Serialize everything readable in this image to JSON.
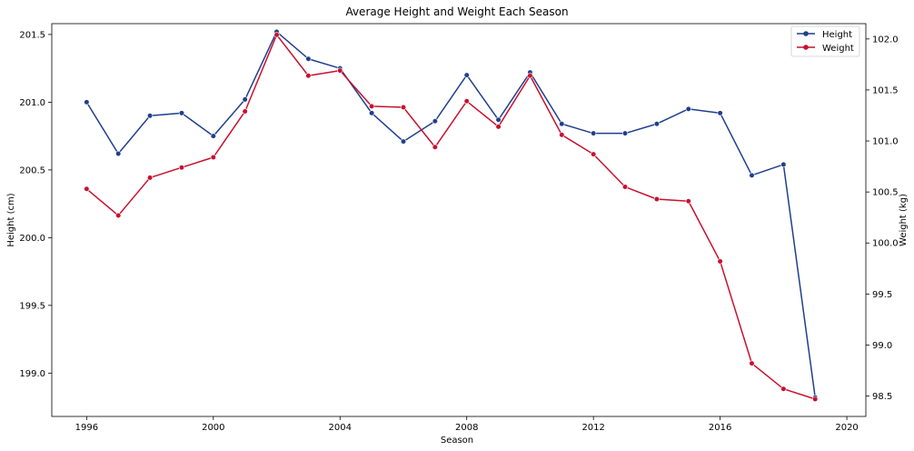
{
  "chart_data": {
    "type": "line",
    "title": "Average Height and Weight Each Season",
    "xlabel": "Season",
    "ylabel_left": "Height (cm)",
    "ylabel_right": "Weight (kg)",
    "x": [
      1996,
      1997,
      1998,
      1999,
      2000,
      2001,
      2002,
      2003,
      2004,
      2005,
      2006,
      2007,
      2008,
      2009,
      2010,
      2011,
      2012,
      2013,
      2014,
      2015,
      2016,
      2017,
      2018,
      2019
    ],
    "xlim": [
      1994.9,
      2020.6
    ],
    "xticks": [
      1996,
      2000,
      2004,
      2008,
      2012,
      2016,
      2020
    ],
    "series": [
      {
        "name": "Height",
        "axis": "left",
        "color": "#1f3f8c",
        "values": [
          201.0,
          200.62,
          200.9,
          200.92,
          200.75,
          201.02,
          201.52,
          201.32,
          201.25,
          200.92,
          200.71,
          200.86,
          201.2,
          200.87,
          201.22,
          200.84,
          200.77,
          200.77,
          200.84,
          200.95,
          200.92,
          200.46,
          200.54,
          198.82
        ]
      },
      {
        "name": "Weight",
        "axis": "right",
        "color": "#c8102e",
        "values": [
          100.53,
          100.27,
          100.64,
          100.74,
          100.84,
          101.29,
          102.04,
          101.64,
          101.69,
          101.34,
          101.33,
          100.94,
          101.39,
          101.14,
          101.64,
          101.06,
          100.87,
          100.55,
          100.43,
          100.41,
          99.82,
          98.82,
          98.57,
          98.47
        ]
      }
    ],
    "ylim_left": [
      198.68,
      201.58
    ],
    "yticks_left": [
      "199.0",
      "199.5",
      "200.0",
      "200.5",
      "201.0",
      "201.5"
    ],
    "ylim_right": [
      98.3,
      102.15
    ],
    "yticks_right": [
      "98.5",
      "99.0",
      "99.5",
      "100.0",
      "100.5",
      "101.0",
      "101.5",
      "102.0"
    ],
    "legend_position": "top-right",
    "grid": false
  }
}
